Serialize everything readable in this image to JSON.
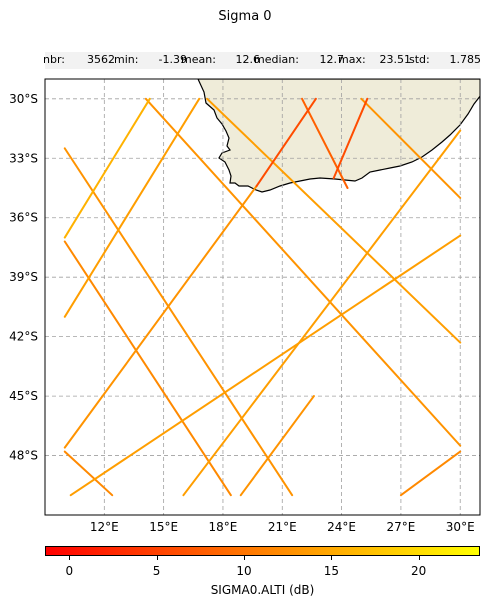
{
  "title": "Sigma 0",
  "stats": [
    {
      "label": "nbr:",
      "value": "3562"
    },
    {
      "label": "min:",
      "value": "-1.39"
    },
    {
      "label": "mean:",
      "value": "12.6"
    },
    {
      "label": "median:",
      "value": "12.7"
    },
    {
      "label": "max:",
      "value": "23.51"
    },
    {
      "label": "std:",
      "value": "1.785"
    }
  ],
  "colorbar": {
    "label": "SIGMA0.ALTI (dB)",
    "ticks": [
      "0",
      "5",
      "10",
      "15",
      "20"
    ],
    "range": [
      -1.39,
      23.51
    ],
    "colors": [
      "#ff0000",
      "#ff8000",
      "#ffff00"
    ]
  },
  "chart_data": {
    "type": "map-track",
    "title": "Sigma 0",
    "x_axis": {
      "ticks": [
        "12°E",
        "15°E",
        "18°E",
        "21°E",
        "24°E",
        "27°E",
        "30°E"
      ],
      "tick_values": [
        12,
        15,
        18,
        21,
        24,
        27,
        30
      ],
      "range": [
        9,
        31
      ]
    },
    "y_axis": {
      "ticks": [
        "30°S",
        "33°S",
        "36°S",
        "39°S",
        "42°S",
        "45°S",
        "48°S"
      ],
      "tick_values": [
        -30,
        -33,
        -36,
        -39,
        -42,
        -45,
        -48
      ],
      "range": [
        -51,
        -29
      ]
    },
    "grid": true,
    "land_color": "#efecd9",
    "tracks": [
      {
        "from": [
          10.0,
          -32.5
        ],
        "to": [
          21.5,
          -50.0
        ],
        "value": 13
      },
      {
        "from": [
          10.0,
          -37.2
        ],
        "to": [
          18.4,
          -50.0
        ],
        "value": 12
      },
      {
        "from": [
          10.0,
          -47.8
        ],
        "to": [
          12.4,
          -50.0
        ],
        "value": 12
      },
      {
        "from": [
          14.1,
          -30.0
        ],
        "to": [
          30.0,
          -47.5
        ],
        "value": 13
      },
      {
        "from": [
          17.2,
          -30.0
        ],
        "to": [
          30.0,
          -42.3
        ],
        "value": 14
      },
      {
        "from": [
          22.0,
          -30.0
        ],
        "to": [
          24.3,
          -34.5
        ],
        "value": 8
      },
      {
        "from": [
          25.0,
          -30.0
        ],
        "to": [
          30.0,
          -35.0
        ],
        "value": 13
      },
      {
        "from": [
          10.0,
          -37.0
        ],
        "to": [
          14.3,
          -30.0
        ],
        "value": 16
      },
      {
        "from": [
          10.0,
          -41.0
        ],
        "to": [
          16.8,
          -30.0
        ],
        "value": 14
      },
      {
        "from": [
          10.0,
          -47.6
        ],
        "to": [
          19.7,
          -34.4
        ],
        "value": 13
      },
      {
        "from": [
          19.7,
          -34.4
        ],
        "to": [
          22.7,
          -30.0
        ],
        "value": 6
      },
      {
        "from": [
          10.3,
          -50.0
        ],
        "to": [
          30.0,
          -36.9
        ],
        "value": 14
      },
      {
        "from": [
          16.0,
          -50.0
        ],
        "to": [
          30.0,
          -31.6
        ],
        "value": 14
      },
      {
        "from": [
          23.6,
          -34.0
        ],
        "to": [
          25.3,
          -30.0
        ],
        "value": 6
      },
      {
        "from": [
          18.9,
          -50.0
        ],
        "to": [
          22.6,
          -45.0
        ],
        "value": 13
      },
      {
        "from": [
          27.0,
          -50.0
        ],
        "to": [
          30.0,
          -47.8
        ],
        "value": 12
      }
    ]
  }
}
